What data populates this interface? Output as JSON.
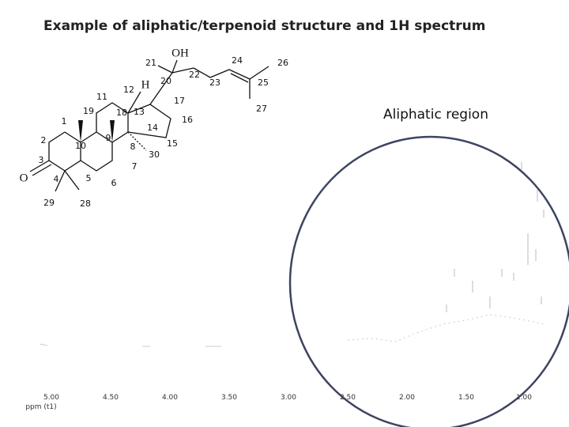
{
  "header": {
    "title": "Example of aliphatic/terpenoid structure and 1H spectrum"
  },
  "structure": {
    "labels": [
      "OH",
      "21",
      "20",
      "22",
      "24",
      "26",
      "23",
      "25",
      "27",
      "H",
      "12",
      "17",
      "11",
      "19",
      "18",
      "13",
      "16",
      "1",
      "9",
      "14",
      "2",
      "10",
      "8",
      "15",
      "30",
      "3",
      "7",
      "O",
      "4",
      "5",
      "6",
      "29",
      "28"
    ]
  },
  "annotation": "Aliphatic region",
  "spectrum": {
    "axis_labels": [
      "5.00",
      "4.50",
      "4.00",
      "3.50",
      "3.00",
      "2.50",
      "2.00",
      "1.50",
      "1.00"
    ],
    "axis_title": "ppm (t1)"
  }
}
